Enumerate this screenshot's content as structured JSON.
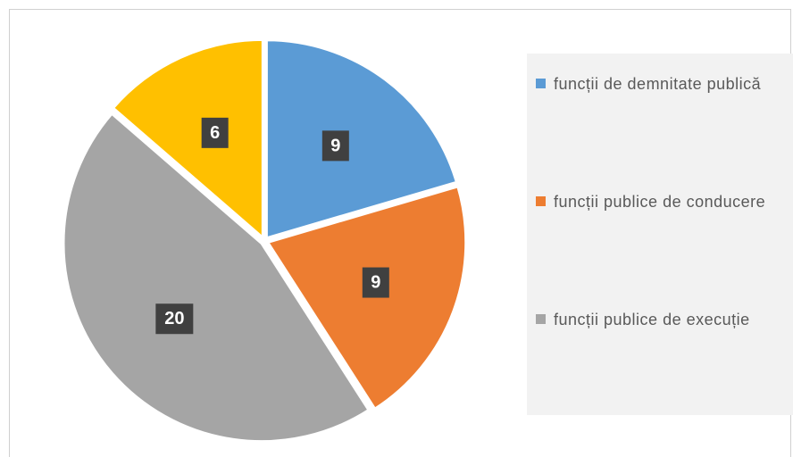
{
  "chart_data": {
    "type": "pie",
    "categories": [
      "funcții de demnitate publică",
      "funcții publice de conducere",
      "funcții publice de execuție",
      null
    ],
    "values": [
      9,
      9,
      20,
      6
    ],
    "colors": [
      "#5b9bd5",
      "#ed7d31",
      "#a5a5a5",
      "#ffc000"
    ],
    "legend": "right"
  }
}
